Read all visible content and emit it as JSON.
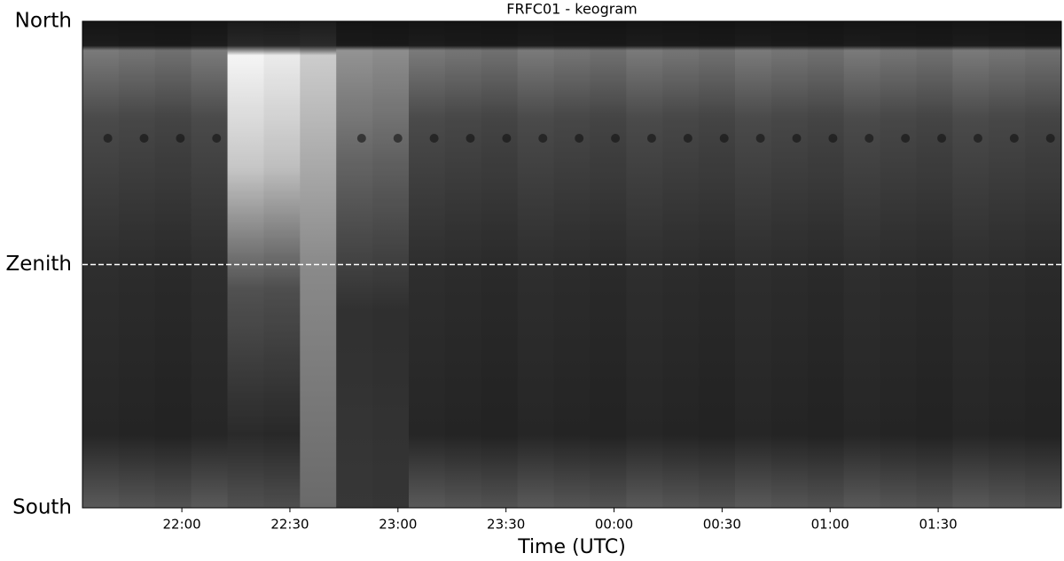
{
  "chart_data": {
    "type": "keogram",
    "title": "FRFC01 - keogram",
    "xlabel": "Time (UTC)",
    "xlim": [
      21.54,
      26.07
    ],
    "xticks": [
      {
        "value": 22.0,
        "label": "22:00"
      },
      {
        "value": 22.5,
        "label": "22:30"
      },
      {
        "value": 23.0,
        "label": "23:00"
      },
      {
        "value": 23.5,
        "label": "23:30"
      },
      {
        "value": 24.0,
        "label": "00:00"
      },
      {
        "value": 24.5,
        "label": "00:30"
      },
      {
        "value": 25.0,
        "label": "01:00"
      },
      {
        "value": 25.5,
        "label": "01:30"
      }
    ],
    "ylim": [
      -1,
      1
    ],
    "yticks": [
      {
        "value": 1,
        "label": "North"
      },
      {
        "value": 0,
        "label": "Zenith"
      },
      {
        "value": -1,
        "label": "South"
      }
    ]
  }
}
